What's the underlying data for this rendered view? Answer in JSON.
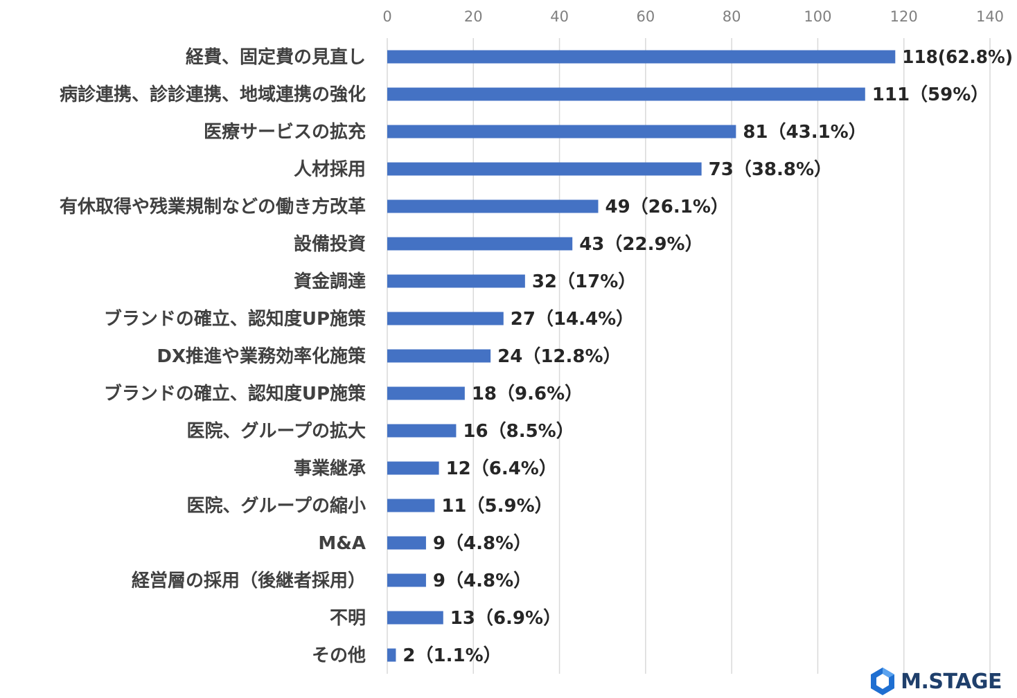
{
  "chart_data": {
    "type": "bar",
    "orientation": "horizontal",
    "xlim": [
      0,
      140
    ],
    "ticks": [
      0,
      20,
      40,
      60,
      80,
      100,
      120,
      140
    ],
    "tick_labels": [
      "0",
      "20",
      "40",
      "60",
      "80",
      "100",
      "120",
      "140"
    ],
    "grid": true,
    "bar_color": "#4472c4",
    "categories": [
      "経費、固定費の見直し",
      "病診連携、診診連携、地域連携の強化",
      "医療サービスの拡充",
      "人材採用",
      "有休取得や残業規制などの働き方改革",
      "設備投資",
      "資金調達",
      "ブランドの確立、認知度UP施策",
      "DX推進や業務効率化施策",
      "ブランドの確立、認知度UP施策",
      "医院、グループの拡大",
      "事業継承",
      "医院、グループの縮小",
      "M&A",
      "経営層の採用（後継者採用）",
      "不明",
      "その他"
    ],
    "values": [
      118,
      111,
      81,
      73,
      49,
      43,
      32,
      27,
      24,
      18,
      16,
      12,
      11,
      9,
      9,
      13,
      2
    ],
    "data_labels": [
      "118(62.8%)",
      "111（59%）",
      "81（43.1%）",
      "73（38.8%）",
      "49（26.1%）",
      "43（22.9%）",
      "32（17%）",
      "27（14.4%）",
      "24（12.8%）",
      "18（9.6%）",
      "16（8.5%）",
      "12（6.4%）",
      "11（5.9%）",
      "9（4.8%）",
      "9（4.8%）",
      "13（6.9%）",
      "2（1.1%）"
    ]
  },
  "logo": {
    "text": "M.STAGE",
    "icon": "hexagon-logo-icon",
    "color": "#1f3f6b"
  }
}
